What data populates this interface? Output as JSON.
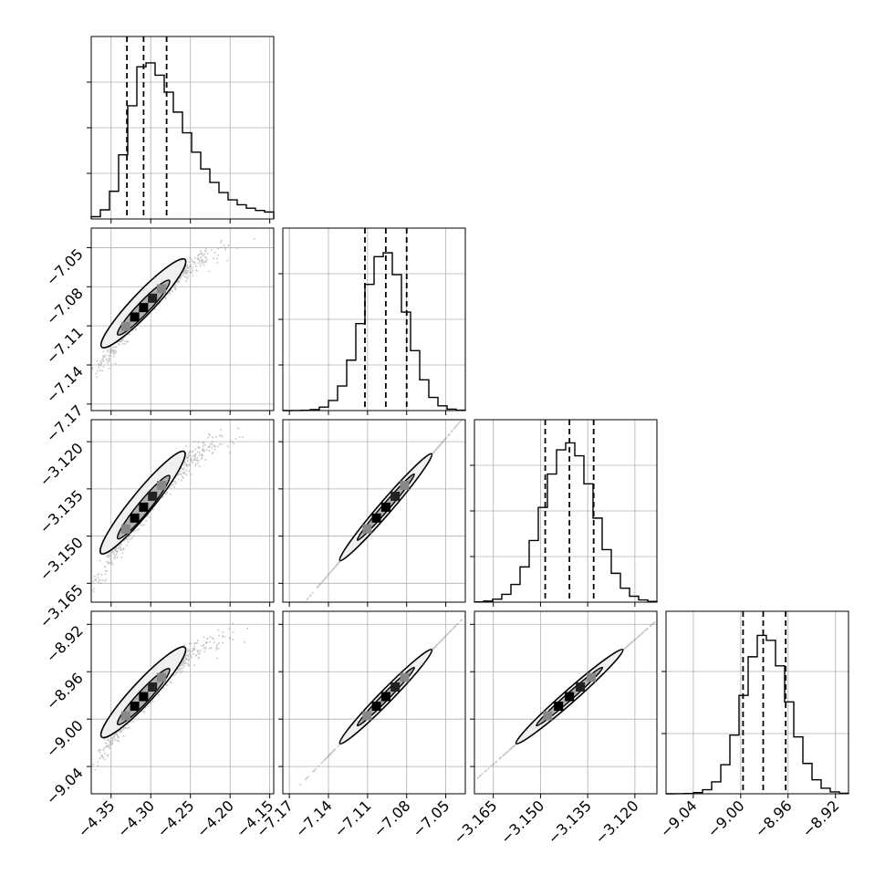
{
  "chart_data": {
    "type": "corner",
    "title": "",
    "parameters": [
      {
        "name": "",
        "range": [
          -4.375,
          -4.145
        ],
        "ticks": [
          "−4.35",
          "−4.30",
          "−4.25",
          "−4.20",
          "−4.15"
        ],
        "tick_values": [
          -4.35,
          -4.3,
          -4.25,
          -4.2,
          -4.15
        ],
        "quantiles": [
          -4.33,
          -4.309,
          -4.28
        ],
        "hist_peak": -4.305
      },
      {
        "name": "",
        "range": [
          -7.175,
          -7.035
        ],
        "ticks": [
          "−7.17",
          "−7.14",
          "−7.11",
          "−7.08",
          "−7.05"
        ],
        "tick_values": [
          -7.17,
          -7.14,
          -7.11,
          -7.08,
          -7.05
        ],
        "quantiles": [
          -7.112,
          -7.096,
          -7.08
        ],
        "hist_peak": -7.097
      },
      {
        "name": "",
        "range": [
          -3.171,
          -3.113
        ],
        "ticks": [
          "−3.165",
          "−3.150",
          "−3.135",
          "−3.120"
        ],
        "tick_values": [
          -3.165,
          -3.15,
          -3.135,
          -3.12
        ],
        "quantiles": [
          -3.1485,
          -3.1408,
          -3.1331
        ],
        "hist_peak": -3.141
      },
      {
        "name": "",
        "range": [
          -9.063,
          -8.909
        ],
        "ticks": [
          "−9.04",
          "−9.00",
          "−8.96",
          "−8.92"
        ],
        "tick_values": [
          -9.04,
          -9.0,
          -8.96,
          -8.92
        ],
        "quantiles": [
          -8.998,
          -8.981,
          -8.962
        ],
        "hist_peak": -8.98
      }
    ],
    "histogram_ticks": [
      {
        "panel": 0,
        "ytick_values": [
          0.25,
          0.5,
          0.75
        ]
      },
      {
        "panel": 1,
        "ytick_values": [
          0.25,
          0.5,
          0.75
        ]
      },
      {
        "panel": 2,
        "ytick_values": [
          0.25,
          0.5,
          0.75
        ]
      },
      {
        "panel": 3,
        "ytick_values": [
          0.33,
          0.67
        ]
      }
    ],
    "quantile_levels": [
      0.16,
      0.5,
      0.84
    ],
    "grid": true,
    "line_style_quantiles": "dashed",
    "colors": {
      "line": "#000000",
      "scatter": "#808080",
      "grid": "#b0b0b0"
    }
  }
}
